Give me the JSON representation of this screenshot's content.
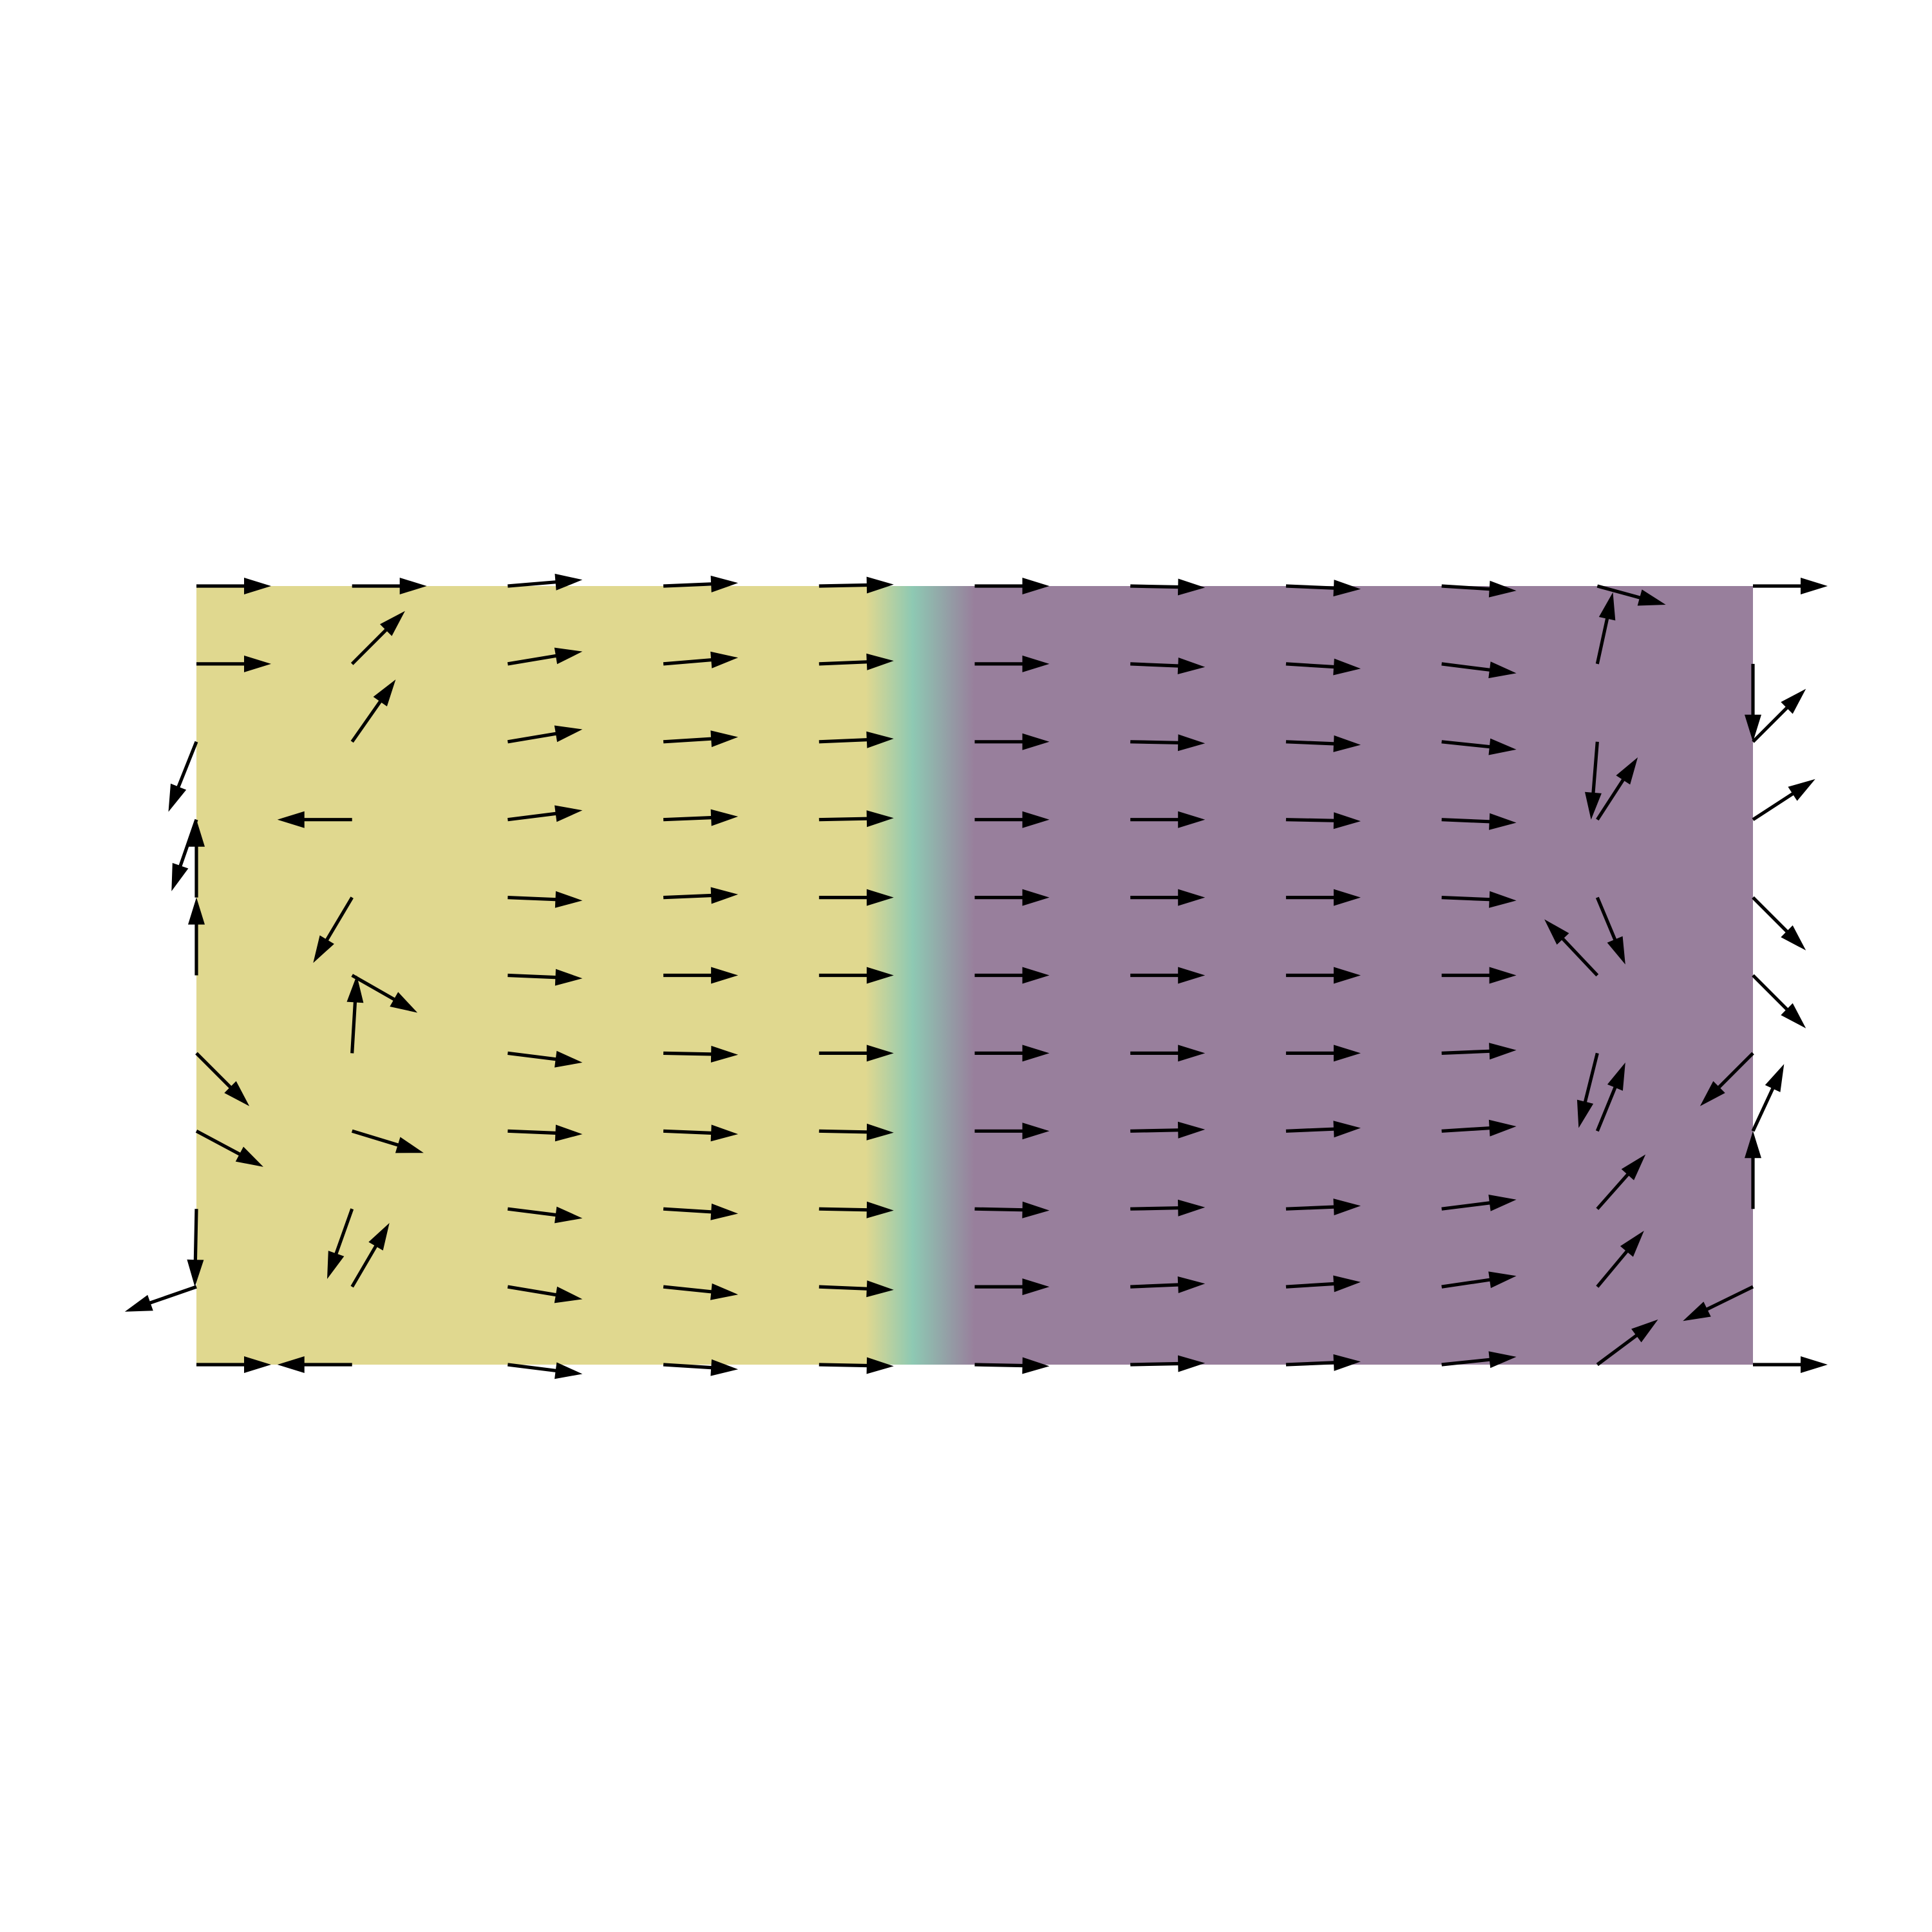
{
  "chart_data": {
    "type": "quiver",
    "xlim": [
      0,
      10
    ],
    "ylim": [
      0,
      5
    ],
    "axis": false,
    "x": [
      0,
      1,
      2,
      3,
      4,
      5,
      6,
      7,
      8,
      9,
      10
    ],
    "y": [
      5,
      4.5,
      4,
      3.5,
      3,
      2.5,
      2,
      1.5,
      1,
      0.5,
      0
    ],
    "u": [
      [
        0.48,
        0.48,
        0.48,
        0.48,
        0.48,
        0.48,
        0.48,
        0.48,
        0.48,
        0.44,
        0.48
      ],
      [
        0.48,
        0.34,
        0.48,
        0.48,
        0.48,
        0.48,
        0.48,
        0.48,
        0.48,
        0.1,
        0
      ],
      [
        -0.18,
        0.28,
        0.48,
        0.48,
        0.48,
        0.48,
        0.48,
        0.48,
        0.48,
        -0.04,
        0.34
      ],
      [
        -0.16,
        -0.48,
        0.48,
        0.48,
        0.48,
        0.48,
        0.48,
        0.48,
        0.48,
        0.26,
        0.4
      ],
      [
        0,
        -0.25,
        0.48,
        0.48,
        0.48,
        0.48,
        0.48,
        0.48,
        0.48,
        0.18,
        0.34
      ],
      [
        0,
        0.42,
        0.48,
        0.48,
        0.48,
        0.48,
        0.48,
        0.48,
        0.48,
        -0.34,
        0.34
      ],
      [
        0.34,
        0.03,
        0.48,
        0.48,
        0.48,
        0.48,
        0.48,
        0.48,
        0.48,
        -0.12,
        -0.34
      ],
      [
        0.43,
        0.46,
        0.48,
        0.48,
        0.48,
        0.48,
        0.48,
        0.48,
        0.48,
        0.18,
        0.2
      ],
      [
        -0.01,
        -0.16,
        0.48,
        0.48,
        0.48,
        0.48,
        0.48,
        0.48,
        0.48,
        0.31,
        0
      ],
      [
        -0.46,
        0.24,
        0.48,
        0.48,
        0.48,
        0.48,
        0.48,
        0.48,
        0.48,
        0.3,
        -0.45
      ],
      [
        0.48,
        -0.48,
        0.48,
        0.48,
        0.48,
        0.48,
        0.48,
        0.48,
        0.48,
        0.39,
        0.48
      ]
    ],
    "v": [
      [
        0,
        0,
        0.04,
        0.02,
        0.01,
        0,
        -0.01,
        -0.02,
        -0.03,
        -0.12,
        0
      ],
      [
        0,
        0.34,
        0.08,
        0.04,
        0.02,
        0,
        -0.02,
        -0.03,
        -0.06,
        0.46,
        -0.5
      ],
      [
        -0.45,
        0.4,
        0.08,
        0.03,
        0.02,
        0,
        -0.01,
        -0.02,
        -0.05,
        -0.5,
        0.34
      ],
      [
        -0.46,
        0,
        0.06,
        0.02,
        0.01,
        0,
        0,
        -0.01,
        -0.02,
        0.4,
        0.26
      ],
      [
        0.5,
        -0.42,
        -0.02,
        0.02,
        0,
        0,
        0,
        0,
        -0.02,
        -0.43,
        -0.34
      ],
      [
        0.5,
        -0.24,
        -0.02,
        0,
        0,
        0,
        0,
        0,
        0,
        0.36,
        -0.34
      ],
      [
        -0.34,
        0.5,
        -0.06,
        -0.01,
        0,
        0,
        0,
        0,
        0.02,
        -0.48,
        -0.34
      ],
      [
        -0.23,
        -0.14,
        -0.02,
        -0.02,
        -0.01,
        0,
        0.01,
        0.02,
        0.03,
        0.44,
        0.43
      ],
      [
        -0.5,
        -0.45,
        -0.06,
        -0.03,
        -0.01,
        -0.01,
        0.01,
        0.02,
        0.06,
        0.35,
        0.5
      ],
      [
        -0.16,
        0.41,
        -0.08,
        -0.05,
        -0.02,
        0,
        0.02,
        0.03,
        0.07,
        0.36,
        -0.22
      ],
      [
        0,
        0,
        -0.06,
        -0.03,
        -0.01,
        -0.01,
        0.01,
        0.02,
        0.05,
        0.29,
        0
      ]
    ],
    "arrow_color": "#000000",
    "field_colors": [
      "#e0d88f",
      "#8ec9b3",
      "#987f9c"
    ],
    "field_stops": [
      4.3,
      4.6,
      5.0
    ]
  }
}
